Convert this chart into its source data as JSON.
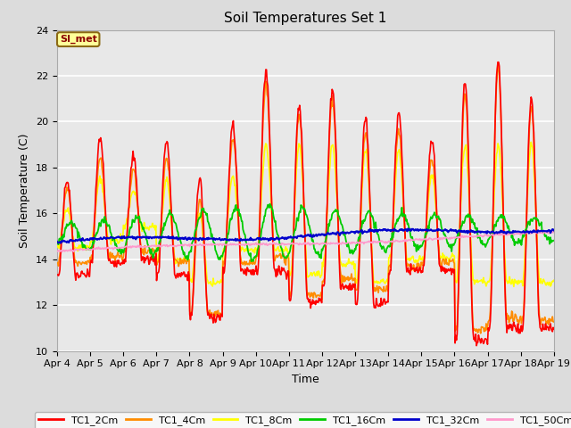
{
  "title": "Soil Temperatures Set 1",
  "xlabel": "Time",
  "ylabel": "Soil Temperature (C)",
  "ylim": [
    10,
    24
  ],
  "xlim": [
    0,
    15
  ],
  "background_color": "#dcdcdc",
  "plot_bg_color": "#e8e8e8",
  "annotation_text": "SI_met",
  "annotation_bg": "#ffff99",
  "annotation_border": "#8b6914",
  "tick_labels": [
    "Apr 4",
    "Apr 5",
    "Apr 6",
    "Apr 7",
    "Apr 8",
    "Apr 9",
    "Apr 10",
    "Apr 11",
    "Apr 12",
    "Apr 13",
    "Apr 14",
    "Apr 15",
    "Apr 16",
    "Apr 17",
    "Apr 18",
    "Apr 19"
  ],
  "series_colors": {
    "TC1_2Cm": "#ff0000",
    "TC1_4Cm": "#ff8c00",
    "TC1_8Cm": "#ffff00",
    "TC1_16Cm": "#00cc00",
    "TC1_32Cm": "#0000cc",
    "TC1_50Cm": "#ff99cc"
  },
  "legend_colors": [
    "#ff0000",
    "#ff8c00",
    "#ffff00",
    "#00cc00",
    "#0000cc",
    "#ff99cc"
  ],
  "legend_labels": [
    "TC1_2Cm",
    "TC1_4Cm",
    "TC1_8Cm",
    "TC1_16Cm",
    "TC1_32Cm",
    "TC1_50Cm"
  ]
}
